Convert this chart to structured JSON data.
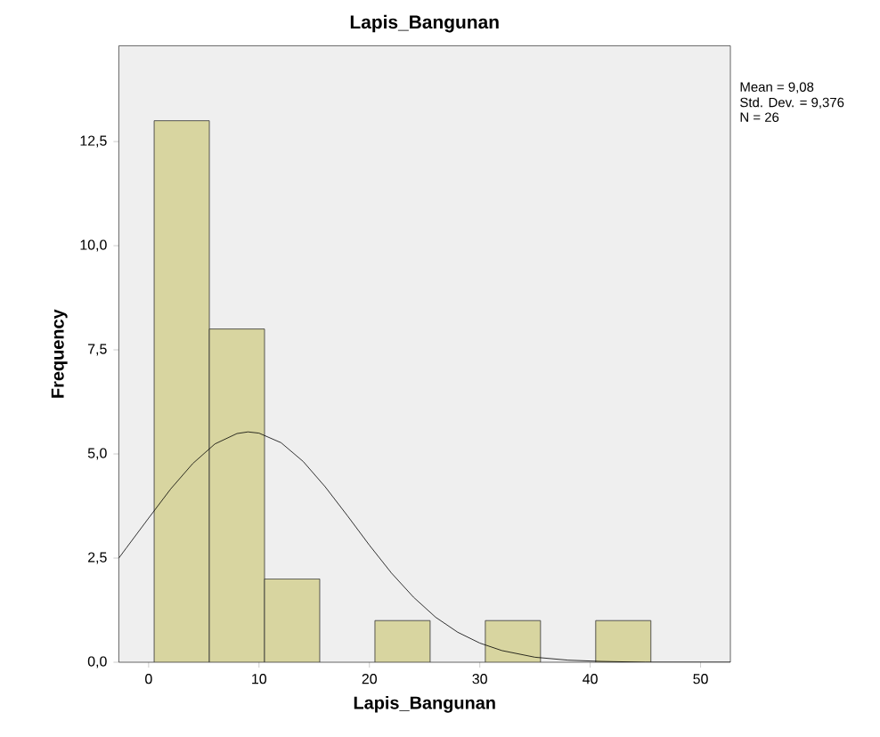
{
  "chart_data": {
    "type": "histogram",
    "title": "Lapis_Bangunan",
    "xlabel": "Lapis_Bangunan",
    "ylabel": "Frequency",
    "bins": [
      0.5,
      5.5,
      10.5,
      15.5,
      20.5,
      25.5,
      30.5,
      35.5,
      40.5,
      45.5
    ],
    "values": [
      13,
      8,
      2,
      0,
      1,
      0,
      1,
      0,
      1
    ],
    "color": "#d8d5a0",
    "series": [
      {
        "type": "line",
        "color": "#000000",
        "x": [
          -2.7,
          -2,
          0,
          2,
          4,
          6,
          8,
          9,
          10,
          12,
          14,
          16,
          18,
          20,
          22,
          24,
          26,
          28,
          30,
          32,
          35,
          38,
          41,
          45,
          52.7
        ],
        "values": [
          2.5,
          2.75,
          3.46,
          4.16,
          4.77,
          5.24,
          5.49,
          5.53,
          5.5,
          5.27,
          4.82,
          4.21,
          3.52,
          2.81,
          2.14,
          1.56,
          1.08,
          0.72,
          0.46,
          0.28,
          0.12,
          0.05,
          0.02,
          0.0,
          0.0
        ]
      }
    ],
    "xlim": [
      -2.7,
      52.7
    ],
    "ylim": [
      0,
      14.8
    ],
    "xticks": [
      0,
      10,
      20,
      30,
      40,
      50
    ],
    "yticks": [
      {
        "value": 0,
        "label": "0,0"
      },
      {
        "value": 2.5,
        "label": "2,5"
      },
      {
        "value": 5,
        "label": "5,0"
      },
      {
        "value": 7.5,
        "label": "7,5"
      },
      {
        "value": 10,
        "label": "10,0"
      },
      {
        "value": 12.5,
        "label": "12,5"
      }
    ],
    "annotations": [
      "Mean = 9,08",
      "Std. Dev. = 9,376",
      "N = 26"
    ]
  }
}
